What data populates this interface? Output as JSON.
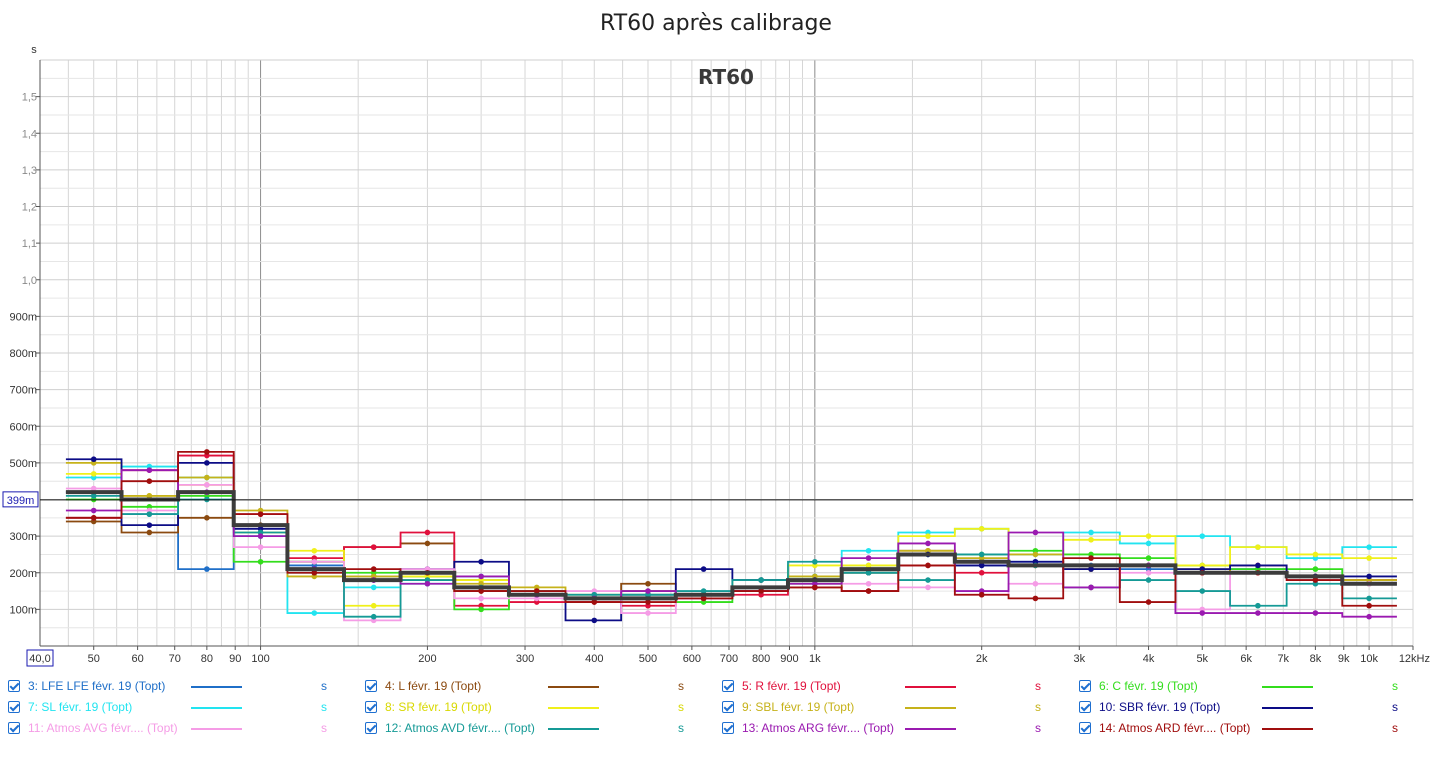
{
  "chart_data": {
    "type": "line",
    "title": "RT60 après calibrage",
    "inner_title": "RT60",
    "y_unit_label": "s",
    "x_unit_label": "kHz",
    "x_scale": "log",
    "xlim": [
      40,
      12000
    ],
    "ylim": [
      0,
      1.6
    ],
    "grid": true,
    "legend_position": "bottom",
    "marker_value": 0.399,
    "marker_label": "399m",
    "x_start_label": "40,0",
    "y_ticks": [
      {
        "v": 0.1,
        "l": "100m"
      },
      {
        "v": 0.2,
        "l": "200m"
      },
      {
        "v": 0.3,
        "l": "300m"
      },
      {
        "v": 0.5,
        "l": "500m"
      },
      {
        "v": 0.6,
        "l": "600m"
      },
      {
        "v": 0.7,
        "l": "700m"
      },
      {
        "v": 0.8,
        "l": "800m"
      },
      {
        "v": 0.9,
        "l": "900m"
      },
      {
        "v": 1.0,
        "l": "1,0"
      },
      {
        "v": 1.1,
        "l": "1,1"
      },
      {
        "v": 1.2,
        "l": "1,2"
      },
      {
        "v": 1.3,
        "l": "1,3"
      },
      {
        "v": 1.4,
        "l": "1,4"
      },
      {
        "v": 1.5,
        "l": "1,5"
      }
    ],
    "x_ticks": [
      {
        "v": 50,
        "l": "50"
      },
      {
        "v": 60,
        "l": "60"
      },
      {
        "v": 70,
        "l": "70"
      },
      {
        "v": 80,
        "l": "80"
      },
      {
        "v": 90,
        "l": "90"
      },
      {
        "v": 100,
        "l": "100"
      },
      {
        "v": 200,
        "l": "200"
      },
      {
        "v": 300,
        "l": "300"
      },
      {
        "v": 400,
        "l": "400"
      },
      {
        "v": 500,
        "l": "500"
      },
      {
        "v": 600,
        "l": "600"
      },
      {
        "v": 700,
        "l": "700"
      },
      {
        "v": 800,
        "l": "800"
      },
      {
        "v": 900,
        "l": "900"
      },
      {
        "v": 1000,
        "l": "1k"
      },
      {
        "v": 2000,
        "l": "2k"
      },
      {
        "v": 3000,
        "l": "3k"
      },
      {
        "v": 4000,
        "l": "4k"
      },
      {
        "v": 5000,
        "l": "5k"
      },
      {
        "v": 6000,
        "l": "6k"
      },
      {
        "v": 7000,
        "l": "7k"
      },
      {
        "v": 8000,
        "l": "8k"
      },
      {
        "v": 9000,
        "l": "9k"
      },
      {
        "v": 10000,
        "l": "10k"
      },
      {
        "v": 12000,
        "l": "12kHz"
      }
    ],
    "bands": [
      50,
      63,
      80,
      100,
      125,
      160,
      200,
      250,
      315,
      400,
      500,
      630,
      800,
      1000,
      1250,
      1600,
      2000,
      2500,
      3150,
      4000,
      5000,
      6300,
      8000,
      10000
    ],
    "series": [
      {
        "name": "3: LFE LFE févr. 19 (Topt)",
        "color": "#1f6fc8",
        "unit": "s",
        "values": [
          0.42,
          0.36,
          0.21,
          0.33,
          0.22,
          0.19,
          0.19,
          0.18,
          0.14,
          0.14,
          0.13,
          0.14,
          0.18,
          0.19,
          0.22,
          0.25,
          0.22,
          0.23,
          0.22,
          0.21,
          0.2,
          0.21,
          0.19,
          0.18
        ]
      },
      {
        "name": "4: L févr. 19 (Topt)",
        "color": "#8b4a10",
        "unit": "s",
        "values": [
          0.34,
          0.31,
          0.35,
          0.33,
          0.23,
          0.27,
          0.28,
          0.15,
          0.15,
          0.13,
          0.17,
          0.14,
          0.15,
          0.16,
          0.21,
          0.26,
          0.23,
          0.22,
          0.21,
          0.22,
          0.2,
          0.2,
          0.19,
          0.17
        ]
      },
      {
        "name": "5: R févr. 19 (Topt)",
        "color": "#e0103c",
        "unit": "s",
        "values": [
          0.35,
          0.48,
          0.52,
          0.36,
          0.24,
          0.27,
          0.31,
          0.11,
          0.12,
          0.12,
          0.11,
          0.13,
          0.14,
          0.16,
          0.15,
          0.22,
          0.2,
          0.22,
          0.16,
          0.22,
          0.2,
          0.22,
          0.19,
          0.18
        ]
      },
      {
        "name": "6: C févr. 19 (Topt)",
        "color": "#33dd1c",
        "unit": "s",
        "values": [
          0.4,
          0.38,
          0.41,
          0.23,
          0.23,
          0.2,
          0.19,
          0.1,
          0.15,
          0.13,
          0.14,
          0.12,
          0.15,
          0.17,
          0.2,
          0.25,
          0.25,
          0.26,
          0.25,
          0.24,
          0.22,
          0.21,
          0.21,
          0.17
        ]
      },
      {
        "name": "7: SL févr. 19 (Topt)",
        "color": "#22e4f0",
        "unit": "s",
        "values": [
          0.46,
          0.49,
          0.46,
          0.3,
          0.09,
          0.16,
          0.17,
          0.19,
          0.15,
          0.13,
          0.15,
          0.14,
          0.18,
          0.19,
          0.26,
          0.31,
          0.32,
          0.25,
          0.31,
          0.28,
          0.3,
          0.27,
          0.24,
          0.27
        ]
      },
      {
        "name": "8: SR févr. 19 (Topt)",
        "color": "#f0f01a",
        "unit": "s",
        "values": [
          0.47,
          0.41,
          0.44,
          0.31,
          0.26,
          0.11,
          0.19,
          0.18,
          0.14,
          0.14,
          0.13,
          0.14,
          0.18,
          0.22,
          0.22,
          0.3,
          0.32,
          0.22,
          0.29,
          0.3,
          0.22,
          0.27,
          0.25,
          0.24
        ]
      },
      {
        "name": "9: SBL févr. 19 (Topt)",
        "color": "#c6b21a",
        "unit": "s",
        "values": [
          0.5,
          0.41,
          0.46,
          0.37,
          0.19,
          0.19,
          0.18,
          0.17,
          0.16,
          0.13,
          0.15,
          0.13,
          0.15,
          0.19,
          0.2,
          0.26,
          0.24,
          0.25,
          0.21,
          0.22,
          0.21,
          0.2,
          0.19,
          0.18
        ]
      },
      {
        "name": "10: SBR févr. 19 (Topt)",
        "color": "#0c0c86",
        "unit": "s",
        "values": [
          0.51,
          0.33,
          0.5,
          0.32,
          0.21,
          0.18,
          0.21,
          0.23,
          0.14,
          0.07,
          0.14,
          0.21,
          0.18,
          0.18,
          0.2,
          0.25,
          0.22,
          0.23,
          0.21,
          0.22,
          0.21,
          0.22,
          0.19,
          0.19
        ]
      },
      {
        "name": "11: Atmos AVG févr.... (Topt)",
        "color": "#f59ce6",
        "unit": "s",
        "values": [
          0.43,
          0.37,
          0.44,
          0.27,
          0.23,
          0.07,
          0.21,
          0.13,
          0.13,
          0.15,
          0.09,
          0.13,
          0.15,
          0.17,
          0.17,
          0.16,
          0.14,
          0.17,
          0.16,
          0.2,
          0.1,
          0.2,
          0.18,
          0.17
        ]
      },
      {
        "name": "12: Atmos AVD févr.... (Topt)",
        "color": "#159a96",
        "unit": "s",
        "values": [
          0.41,
          0.36,
          0.4,
          0.31,
          0.2,
          0.08,
          0.18,
          0.16,
          0.14,
          0.14,
          0.14,
          0.15,
          0.18,
          0.23,
          0.2,
          0.18,
          0.25,
          0.22,
          0.16,
          0.18,
          0.15,
          0.11,
          0.17,
          0.13
        ]
      },
      {
        "name": "13: Atmos ARG févr.... (Topt)",
        "color": "#9a1ab0",
        "unit": "s",
        "values": [
          0.37,
          0.48,
          0.42,
          0.3,
          0.21,
          0.18,
          0.17,
          0.19,
          0.14,
          0.13,
          0.15,
          0.13,
          0.15,
          0.17,
          0.24,
          0.28,
          0.15,
          0.31,
          0.16,
          0.22,
          0.09,
          0.09,
          0.09,
          0.08
        ]
      },
      {
        "name": "14: Atmos ARD févr.... (Topt)",
        "color": "#a00e0e",
        "unit": "s",
        "values": [
          0.35,
          0.45,
          0.53,
          0.36,
          0.2,
          0.21,
          0.2,
          0.15,
          0.15,
          0.12,
          0.12,
          0.13,
          0.15,
          0.16,
          0.15,
          0.22,
          0.14,
          0.13,
          0.24,
          0.12,
          0.2,
          0.2,
          0.18,
          0.11
        ]
      },
      {
        "name": "",
        "color": "#3c3c3c",
        "unit": "",
        "values": [
          0.42,
          0.4,
          0.42,
          0.33,
          0.21,
          0.18,
          0.2,
          0.16,
          0.14,
          0.13,
          0.13,
          0.14,
          0.16,
          0.18,
          0.21,
          0.25,
          0.23,
          0.22,
          0.22,
          0.22,
          0.2,
          0.2,
          0.19,
          0.17
        ]
      }
    ]
  }
}
